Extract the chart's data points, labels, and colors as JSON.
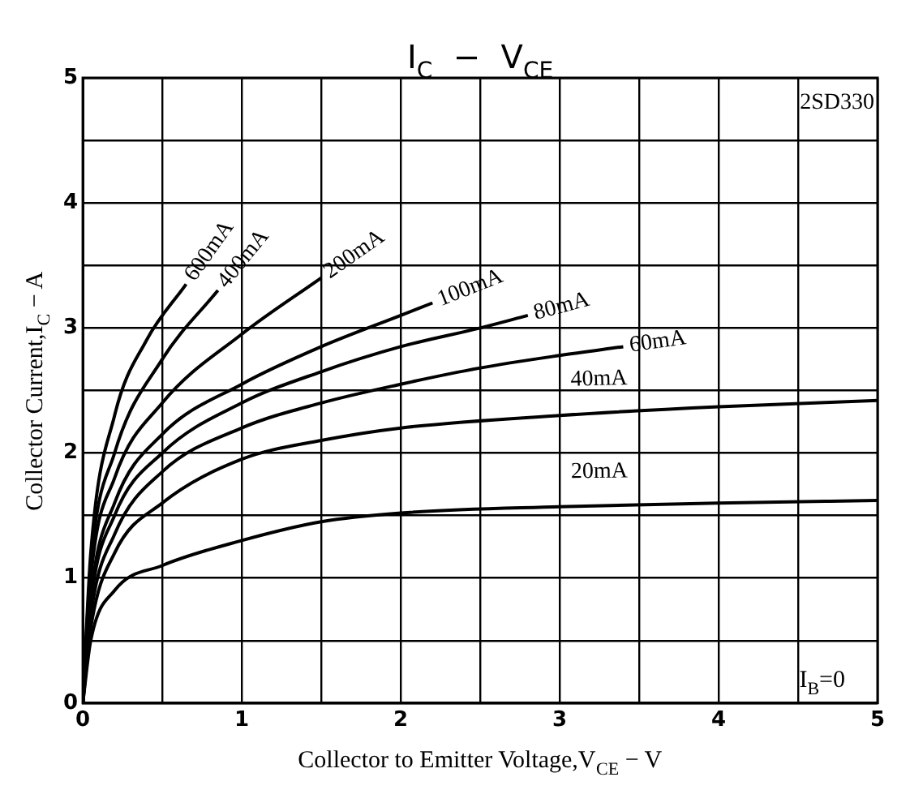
{
  "chart_data": {
    "type": "line",
    "title": "I$_{C}$  −  V$_{CE}$",
    "xlabel": "Collector to Emitter Voltage,V$_{CE}$ − V",
    "ylabel": "Collector Current,I$_{C}$ − A",
    "xlim": [
      0,
      5
    ],
    "ylim": [
      0,
      5
    ],
    "xticks": [
      0,
      {
        "value": 0.5,
        "label": null
      },
      1,
      {
        "value": 1.5,
        "label": null
      },
      2,
      {
        "value": 2.5,
        "label": null
      },
      3,
      {
        "value": 3.5,
        "label": null
      },
      4,
      {
        "value": 4.5,
        "label": null
      },
      5
    ],
    "yticks": [
      0,
      {
        "value": 0.5,
        "label": null
      },
      1,
      {
        "value": 1.5,
        "label": null
      },
      2,
      {
        "value": 2.5,
        "label": null
      },
      3,
      {
        "value": 3.5,
        "label": null
      },
      4,
      {
        "value": 4.5,
        "label": null
      },
      5
    ],
    "grid": true,
    "legend": false,
    "marker": "none",
    "line_style": "solid",
    "annotations": [
      "2SD330",
      "I$_{B}$=0"
    ],
    "series": [
      {
        "name": "20mA",
        "color": "#000000",
        "x": [
          0,
          0.05,
          0.2,
          0.5,
          1,
          1.5,
          2,
          3,
          4,
          5
        ],
        "values": [
          0,
          0.5,
          0.9,
          1.1,
          1.3,
          1.45,
          1.52,
          1.57,
          1.6,
          1.62
        ]
      },
      {
        "name": "40mA",
        "color": "#000000",
        "x": [
          0,
          0.05,
          0.2,
          0.5,
          1,
          1.5,
          2,
          3,
          4,
          5
        ],
        "values": [
          0,
          0.6,
          1.2,
          1.6,
          1.95,
          2.1,
          2.2,
          2.3,
          2.37,
          2.42
        ]
      },
      {
        "name": "60mA",
        "color": "#000000",
        "x": [
          0,
          0.05,
          0.2,
          0.5,
          1,
          1.5,
          2,
          2.5,
          3,
          3.4
        ],
        "values": [
          0,
          0.7,
          1.35,
          1.85,
          2.2,
          2.4,
          2.55,
          2.68,
          2.78,
          2.85
        ]
      },
      {
        "name": "80mA",
        "color": "#000000",
        "x": [
          0,
          0.05,
          0.2,
          0.5,
          1,
          1.5,
          2,
          2.5,
          2.8
        ],
        "values": [
          0,
          0.8,
          1.5,
          2.0,
          2.4,
          2.65,
          2.85,
          3.0,
          3.1
        ]
      },
      {
        "name": "100mA",
        "color": "#000000",
        "x": [
          0,
          0.05,
          0.2,
          0.5,
          1,
          1.5,
          2,
          2.2
        ],
        "values": [
          0,
          0.85,
          1.6,
          2.15,
          2.55,
          2.85,
          3.1,
          3.2
        ]
      },
      {
        "name": "200mA",
        "color": "#000000",
        "x": [
          0,
          0.05,
          0.2,
          0.5,
          1,
          1.5
        ],
        "values": [
          0,
          1.0,
          1.8,
          2.4,
          2.95,
          3.4
        ]
      },
      {
        "name": "400mA",
        "color": "#000000",
        "x": [
          0,
          0.05,
          0.2,
          0.5,
          0.85
        ],
        "values": [
          0,
          1.1,
          2.0,
          2.75,
          3.3
        ]
      },
      {
        "name": "600mA",
        "color": "#000000",
        "x": [
          0,
          0.05,
          0.2,
          0.4,
          0.65
        ],
        "values": [
          0,
          1.2,
          2.3,
          2.9,
          3.35
        ]
      }
    ]
  }
}
